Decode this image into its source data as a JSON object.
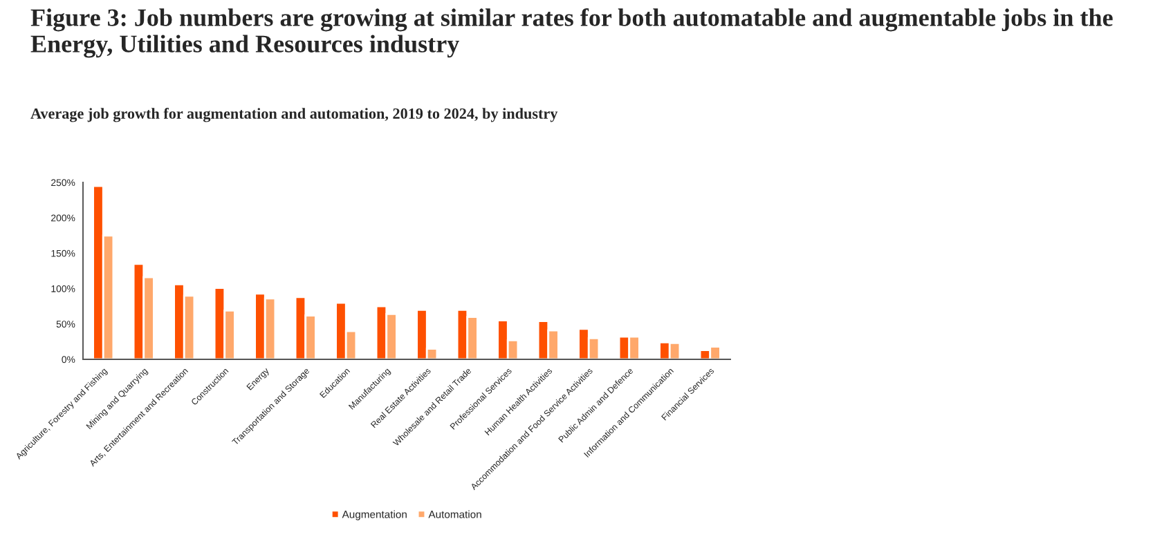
{
  "chart_data": {
    "type": "bar",
    "title": "Figure 3: Job numbers are growing at similar rates for both automatable and augmentable jobs in the Energy, Utilities and Resources industry",
    "subtitle": "Average job growth for augmentation and automation, 2019 to 2024, by industry",
    "categories": [
      "Agriculture, Forestry and Fishing",
      "Mining and Quarrying",
      "Arts, Entertainment and Recreation",
      "Construction",
      "Energy",
      "Transportation and Storage",
      "Education",
      "Manufacturing",
      "Real Estate Activities",
      "Wholesale and Retail Trade",
      "Professional Services",
      "Human Health Activities",
      "Accommodation and Food Service Activities",
      "Public Admin and Defence",
      "Information and Communication",
      "Financial Services"
    ],
    "series": [
      {
        "name": "Augmentation",
        "color": "#fe5000",
        "values": [
          245,
          135,
          106,
          101,
          93,
          88,
          80,
          75,
          70,
          70,
          55,
          54,
          43,
          32,
          24,
          13
        ]
      },
      {
        "name": "Automation",
        "color": "#ffa86b",
        "values": [
          175,
          116,
          90,
          69,
          86,
          62,
          40,
          64,
          15,
          60,
          27,
          41,
          30,
          32,
          23,
          18
        ]
      }
    ],
    "ylim": [
      0,
      250
    ],
    "yticks": [
      {
        "value": 0,
        "label": "0%"
      },
      {
        "value": 50,
        "label": "50%"
      },
      {
        "value": 100,
        "label": "100%"
      },
      {
        "value": 150,
        "label": "150%"
      },
      {
        "value": 200,
        "label": "200%"
      },
      {
        "value": 250,
        "label": "250%"
      }
    ],
    "grid": false,
    "legend": "bottom"
  }
}
